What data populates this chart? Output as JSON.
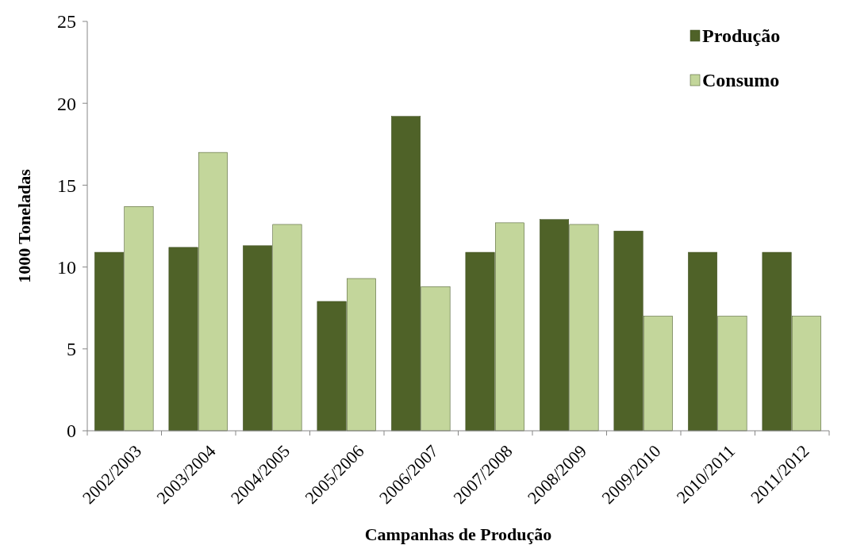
{
  "chart_data": {
    "type": "bar",
    "xlabel": "Campanhas de Produção",
    "ylabel": "1000 Toneladas",
    "categories": [
      "2002/2003",
      "2003/2004",
      "2004/2005",
      "2005/2006",
      "2006/2007",
      "2007/2008",
      "2008/2009",
      "2009/2010",
      "2010/2011",
      "2011/2012"
    ],
    "series": [
      {
        "name": "Produção",
        "color": "#4f6228",
        "values": [
          10.9,
          11.2,
          11.3,
          7.9,
          19.2,
          10.9,
          12.9,
          12.2,
          10.9,
          10.9
        ]
      },
      {
        "name": "Consumo",
        "color": "#c3d69b",
        "values": [
          13.7,
          17.0,
          12.6,
          9.3,
          8.8,
          12.7,
          12.6,
          7.0,
          7.0,
          7.0
        ]
      }
    ],
    "ylim": [
      0,
      25
    ],
    "yticks": [
      0,
      5,
      10,
      15,
      20,
      25
    ],
    "grid": false,
    "legend": "top right"
  }
}
